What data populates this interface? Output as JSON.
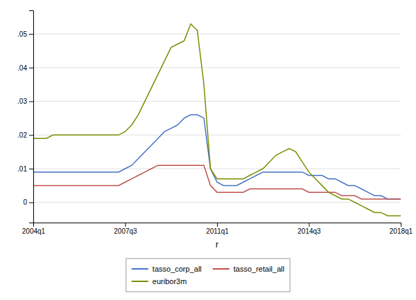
{
  "chart_data": {
    "type": "line",
    "xlabel": "r",
    "categories": [
      "2004q1",
      null,
      null,
      null,
      null,
      null,
      null,
      null,
      null,
      null,
      null,
      null,
      null,
      null,
      "2007q3",
      null,
      null,
      null,
      null,
      null,
      null,
      null,
      null,
      null,
      null,
      null,
      null,
      null,
      "2011q1",
      null,
      null,
      null,
      null,
      null,
      null,
      null,
      null,
      null,
      null,
      null,
      null,
      null,
      "2014q3",
      null,
      null,
      null,
      null,
      null,
      null,
      null,
      null,
      null,
      null,
      null,
      null,
      null,
      "2018q1"
    ],
    "series": [
      {
        "name": "tasso_corp_all",
        "color": "#4472c4",
        "values": [
          0.009,
          0.009,
          0.009,
          0.009,
          0.009,
          0.009,
          0.009,
          0.009,
          0.009,
          0.009,
          0.009,
          0.009,
          0.009,
          0.009,
          0.01,
          0.011,
          0.013,
          0.015,
          0.017,
          0.019,
          0.021,
          0.022,
          0.023,
          0.025,
          0.026,
          0.026,
          0.025,
          0.01,
          0.006,
          0.005,
          0.005,
          0.005,
          0.006,
          0.007,
          0.008,
          0.009,
          0.009,
          0.009,
          0.009,
          0.009,
          0.009,
          0.009,
          0.008,
          0.008,
          0.008,
          0.007,
          0.007,
          0.006,
          0.005,
          0.005,
          0.004,
          0.003,
          0.002,
          0.002,
          0.001,
          0.001,
          0.001
        ]
      },
      {
        "name": "tasso_retail_all",
        "color": "#c0504d",
        "values": [
          0.005,
          0.005,
          0.005,
          0.005,
          0.005,
          0.005,
          0.005,
          0.005,
          0.005,
          0.005,
          0.005,
          0.005,
          0.005,
          0.005,
          0.006,
          0.007,
          0.008,
          0.009,
          0.01,
          0.011,
          0.011,
          0.011,
          0.011,
          0.011,
          0.011,
          0.011,
          0.011,
          0.005,
          0.003,
          0.003,
          0.003,
          0.003,
          0.003,
          0.004,
          0.004,
          0.004,
          0.004,
          0.004,
          0.004,
          0.004,
          0.004,
          0.004,
          0.003,
          0.003,
          0.003,
          0.003,
          0.003,
          0.002,
          0.002,
          0.002,
          0.001,
          0.001,
          0.001,
          0.001,
          0.001,
          0.001,
          0.001
        ]
      },
      {
        "name": "euribor3m",
        "color": "#7a8c00",
        "values": [
          0.019,
          0.019,
          0.019,
          0.02,
          0.02,
          0.02,
          0.02,
          0.02,
          0.02,
          0.02,
          0.02,
          0.02,
          0.02,
          0.02,
          0.021,
          0.023,
          0.026,
          0.03,
          0.034,
          0.038,
          0.042,
          0.046,
          0.047,
          0.048,
          0.053,
          0.051,
          0.035,
          0.01,
          0.007,
          0.007,
          0.007,
          0.007,
          0.007,
          0.008,
          0.009,
          0.01,
          0.012,
          0.014,
          0.015,
          0.016,
          0.015,
          0.012,
          0.009,
          0.007,
          0.005,
          0.003,
          0.002,
          0.001,
          0.001,
          0.0,
          -0.001,
          -0.002,
          -0.003,
          -0.003,
          -0.004,
          -0.004,
          -0.004
        ]
      }
    ],
    "ylim": [
      -0.006,
      0.057
    ],
    "yticks": [
      0,
      {
        "value": 0.01,
        "label": ".01"
      },
      {
        "value": 0.02,
        "label": ".02"
      },
      {
        "value": 0.03,
        "label": ".03"
      },
      {
        "value": 0.04,
        "label": ".04"
      },
      {
        "value": 0.05,
        "label": ".05"
      }
    ],
    "grid": true,
    "legend": "bottom"
  }
}
